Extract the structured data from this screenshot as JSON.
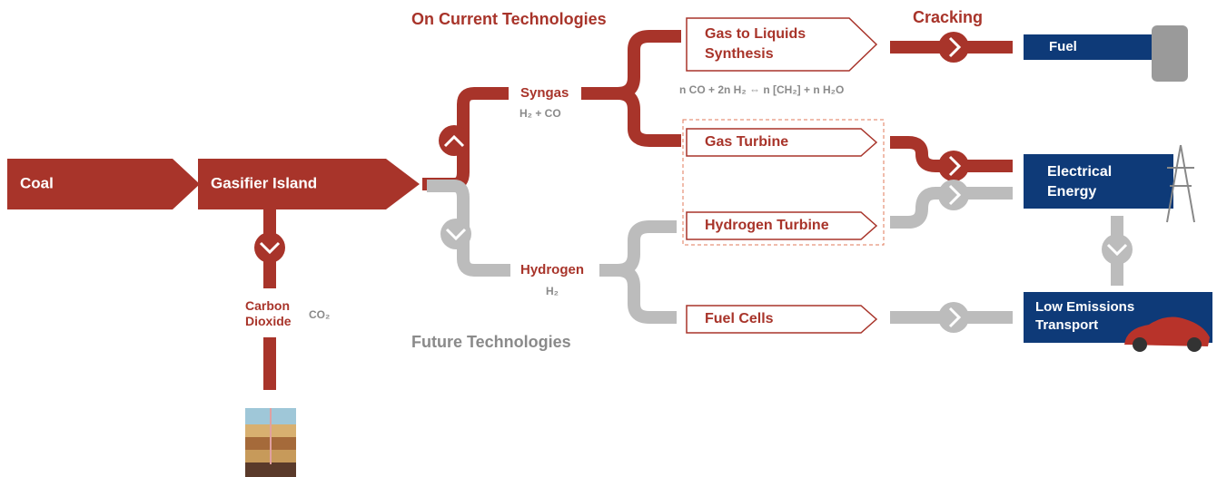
{
  "headings": {
    "current": "On Current Technologies",
    "future": "Future Technologies",
    "cracking": "Cracking"
  },
  "nodes": {
    "coal": "Coal",
    "gasifier": "Gasifier Island",
    "syngas": {
      "label": "Syngas",
      "formula": "H₂ + CO"
    },
    "hydrogen": {
      "label": "Hydrogen",
      "formula": "H₂"
    },
    "carbon_dioxide": {
      "label": [
        "Carbon",
        "Dioxide"
      ],
      "formula": "CO₂"
    },
    "gtl": {
      "label": [
        "Gas to Liquids",
        "Synthesis"
      ],
      "formula": "n CO + 2n H₂ ⇔ n [CH₂] + n H₂O"
    },
    "gas_turbine": "Gas Turbine",
    "hydrogen_turbine": "Hydrogen Turbine",
    "fuel_cells": "Fuel Cells",
    "fuel": "Fuel",
    "electrical": [
      "Electrical",
      "Energy"
    ],
    "transport": [
      "Low Emissions",
      "Transport"
    ]
  }
}
